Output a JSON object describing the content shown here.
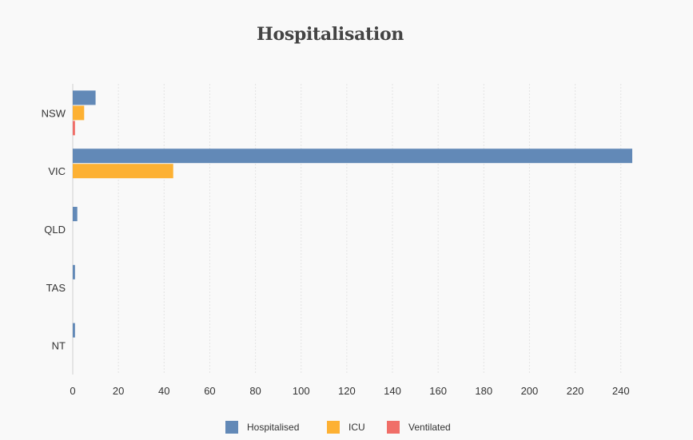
{
  "chart_data": {
    "type": "bar",
    "orientation": "horizontal",
    "title": "Hospitalisation",
    "categories": [
      "NSW",
      "VIC",
      "QLD",
      "TAS",
      "NT"
    ],
    "series": [
      {
        "name": "Hospitalised",
        "color": "#6289b7",
        "values": [
          10,
          245,
          2,
          1,
          1
        ]
      },
      {
        "name": "ICU",
        "color": "#fdb133",
        "values": [
          5,
          44,
          0,
          0,
          0
        ]
      },
      {
        "name": "Ventilated",
        "color": "#f06e68",
        "values": [
          1,
          0,
          0,
          0,
          0
        ]
      }
    ],
    "xlim": [
      0,
      245
    ],
    "xticks": [
      0,
      20,
      40,
      60,
      80,
      100,
      120,
      140,
      160,
      180,
      200,
      220,
      240
    ],
    "grid": true,
    "legend_position": "bottom"
  }
}
